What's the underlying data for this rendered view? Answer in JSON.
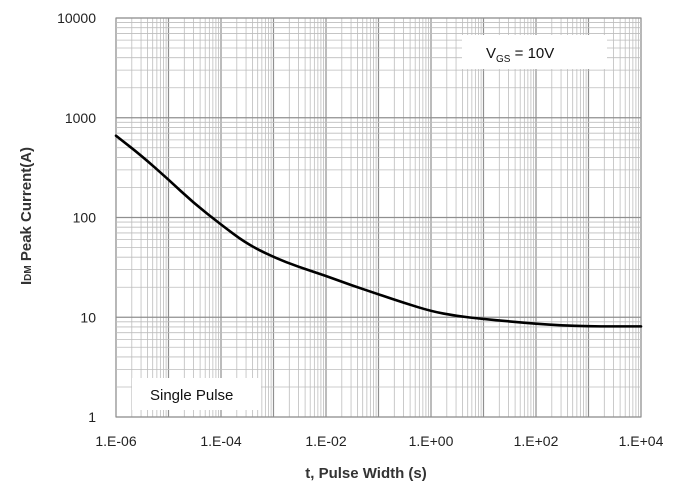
{
  "chart_data": {
    "type": "line",
    "title": "",
    "xlabel": "t, Pulse Width (s)",
    "ylabel_main": "Peak Current(A)",
    "ylabel_prefix": "I",
    "ylabel_subscript": "DM",
    "x_scale": "log",
    "y_scale": "log",
    "xlim": [
      1e-06,
      10000
    ],
    "ylim": [
      1,
      10000
    ],
    "x_ticks": [
      1e-06,
      0.0001,
      0.01,
      1,
      100,
      10000
    ],
    "x_tick_labels": [
      "1.E-06",
      "1.E-04",
      "1.E-02",
      "1.E+00",
      "1.E+02",
      "1.E+04"
    ],
    "y_ticks": [
      1,
      10,
      100,
      1000,
      10000
    ],
    "y_tick_labels": [
      "1",
      "10",
      "100",
      "1000",
      "10000"
    ],
    "grid": true,
    "series": [
      {
        "x": [
          1e-06,
          3e-06,
          1e-05,
          3e-05,
          0.0001,
          0.0003,
          0.001,
          0.003,
          0.01,
          0.03,
          0.1,
          0.3,
          1,
          3,
          10,
          30,
          100,
          300,
          1000,
          3000,
          10000
        ],
        "y": [
          660,
          420,
          240,
          140,
          85,
          55,
          40,
          32,
          26,
          21,
          17,
          14,
          11.5,
          10.3,
          9.6,
          9.1,
          8.6,
          8.3,
          8.1,
          8.1,
          8.1
        ]
      }
    ],
    "annotations": [
      {
        "prefix": "V",
        "subscript": "GS",
        "suffix": " = 10V"
      },
      {
        "text": "Single Pulse"
      }
    ],
    "colors": {
      "background": "#ffffff",
      "grid_minor": "#bdbdbd",
      "grid_major": "#8f8f8f",
      "axis_text": "#222222",
      "axis_title": "#333333",
      "line": "#000000",
      "annotation_box": "#ffffff"
    }
  }
}
